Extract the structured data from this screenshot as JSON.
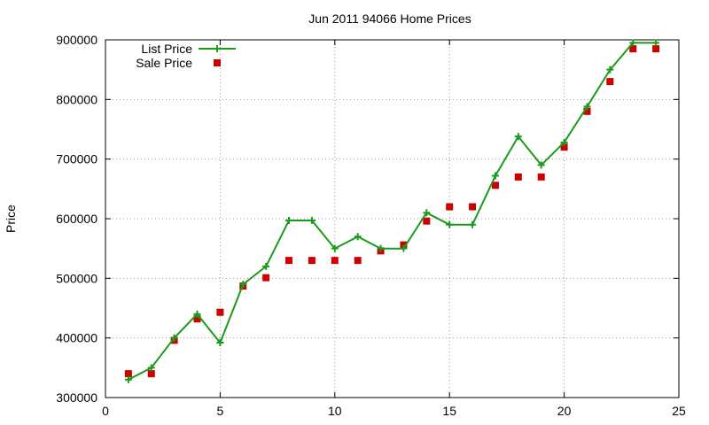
{
  "chart_data": {
    "type": "line",
    "title": "Jun 2011 94066 Home Prices",
    "xlabel": "",
    "ylabel": "Price",
    "xlim": [
      0,
      25
    ],
    "ylim": [
      300000,
      900000
    ],
    "xticks": [
      "0",
      "5",
      "10",
      "15",
      "20",
      "25"
    ],
    "yticks": [
      "300000",
      "400000",
      "500000",
      "600000",
      "700000",
      "800000",
      "900000"
    ],
    "grid": true,
    "legend": "top-left",
    "series": [
      {
        "name": "List Price",
        "style": "line-with-plus-markers",
        "color": "#1a9b1a",
        "points": [
          [
            1,
            330000
          ],
          [
            2,
            350000
          ],
          [
            3,
            400000
          ],
          [
            4,
            440000
          ],
          [
            5,
            392000
          ],
          [
            6,
            490000
          ],
          [
            7,
            520000
          ],
          [
            8,
            597000
          ],
          [
            9,
            597000
          ],
          [
            10,
            550000
          ],
          [
            11,
            570000
          ],
          [
            12,
            550000
          ],
          [
            13,
            550000
          ],
          [
            14,
            610000
          ],
          [
            15,
            590000
          ],
          [
            16,
            590000
          ],
          [
            17,
            672000
          ],
          [
            18,
            738000
          ],
          [
            19,
            690000
          ],
          [
            20,
            728000
          ],
          [
            21,
            788000
          ],
          [
            22,
            850000
          ],
          [
            23,
            895000
          ],
          [
            24,
            895000
          ]
        ]
      },
      {
        "name": "Sale Price",
        "style": "square-markers",
        "color": "#cc0000",
        "points": [
          [
            1,
            340000
          ],
          [
            2,
            340000
          ],
          [
            3,
            396000
          ],
          [
            4,
            432000
          ],
          [
            5,
            443000
          ],
          [
            6,
            487000
          ],
          [
            7,
            501000
          ],
          [
            8,
            530000
          ],
          [
            9,
            530000
          ],
          [
            10,
            530000
          ],
          [
            11,
            530000
          ],
          [
            12,
            546000
          ],
          [
            13,
            556000
          ],
          [
            14,
            596000
          ],
          [
            15,
            620000
          ],
          [
            16,
            620000
          ],
          [
            17,
            656000
          ],
          [
            18,
            670000
          ],
          [
            19,
            670000
          ],
          [
            20,
            720000
          ],
          [
            21,
            780000
          ],
          [
            22,
            830000
          ],
          [
            23,
            885000
          ],
          [
            24,
            885000
          ]
        ]
      }
    ]
  }
}
